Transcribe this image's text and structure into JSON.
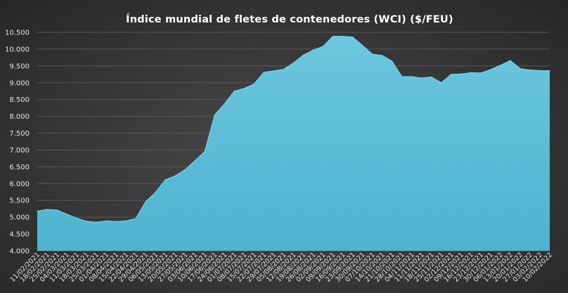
{
  "chart_data": {
    "type": "area",
    "title": "Índice mundial de fletes de contenedores (WCI) ($/FEU)",
    "xlabel": "",
    "ylabel": "",
    "ylim": [
      4000,
      10500
    ],
    "yticks": [
      "4.000",
      "4.500",
      "5.000",
      "5.500",
      "6.000",
      "6.500",
      "7.000",
      "7.500",
      "8.000",
      "8.500",
      "9.000",
      "9.500",
      "10.000",
      "10.500"
    ],
    "ytick_values": [
      4000,
      4500,
      5000,
      5500,
      6000,
      6500,
      7000,
      7500,
      8000,
      8500,
      9000,
      9500,
      10000,
      10500
    ],
    "grid": true,
    "legend": "none",
    "fill_color": "#56b8d4",
    "fill_highlight": "#7fd0e6",
    "series": [
      {
        "x": [
          "11/02/2021",
          "18/02/2021",
          "25/02/2021",
          "04/03/2021",
          "11/03/2021",
          "18/03/2021",
          "25/03/2021",
          "01/04/2021",
          "08/04/2021",
          "15/04/2021",
          "22/04/2021",
          "29/04/2021",
          "06/05/2021",
          "13/05/2021",
          "20/05/2021",
          "27/05/2021",
          "03/06/2021",
          "10/06/2021",
          "17/06/2021",
          "24/06/2021",
          "01/07/2021",
          "08/07/2021",
          "15/07/2021",
          "22/07/2021",
          "29/07/2021",
          "05/08/2021",
          "12/08/2021",
          "19/08/2021",
          "26/08/2021",
          "02/09/2021",
          "09/09/2021",
          "16/09/2021",
          "23/09/2021",
          "30/09/2021",
          "07/10/2021",
          "14/10/2021",
          "21/10/2021",
          "28/10/2021",
          "04/11/2021",
          "11/11/2021",
          "18/11/2021",
          "25/11/2021",
          "02/12/2021",
          "09/12/2021",
          "16/12/2021",
          "23/12/2021",
          "30/12/2021",
          "06/01/2022",
          "13/01/2022",
          "20/01/2022",
          "27/01/2022",
          "03/02/2022",
          "10/02/2022"
        ],
        "values": [
          5180,
          5230,
          5210,
          5090,
          4970,
          4880,
          4850,
          4890,
          4870,
          4890,
          4960,
          5460,
          5740,
          6110,
          6230,
          6410,
          6680,
          6950,
          8040,
          8370,
          8750,
          8830,
          8960,
          9310,
          9350,
          9400,
          9590,
          9820,
          9970,
          10080,
          10380,
          10380,
          10360,
          10110,
          9850,
          9810,
          9640,
          9180,
          9180,
          9140,
          9170,
          9000,
          9250,
          9260,
          9300,
          9290,
          9390,
          9520,
          9660,
          9420,
          9380,
          9360,
          9360
        ]
      }
    ]
  }
}
